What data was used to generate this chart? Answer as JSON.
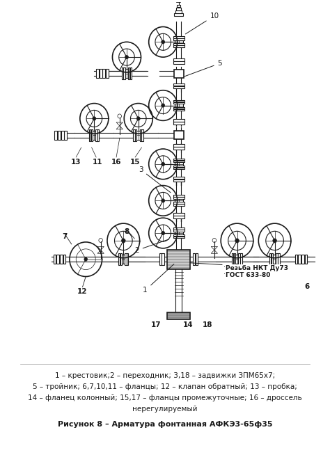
{
  "figure_width": 4.74,
  "figure_height": 6.77,
  "dpi": 100,
  "bg_color": "#ffffff",
  "drawing_color": "#1a1a1a",
  "caption_lines": [
    "1 – крестовик;2 – переходник; 3,18 – задвижки ЗПМ65х7;",
    "5 – тройник; 6,7,10,11 – фланцы; 12 – клапан обратный; 13 – пробка;",
    "14 – фланец колонный; 15,17 – фланцы промежуточные; 16 – дроссель",
    "нерегулируемый"
  ],
  "figure_caption": "Рисунок 8 – Арматура фонтанная АФКЭ3-65ф35"
}
